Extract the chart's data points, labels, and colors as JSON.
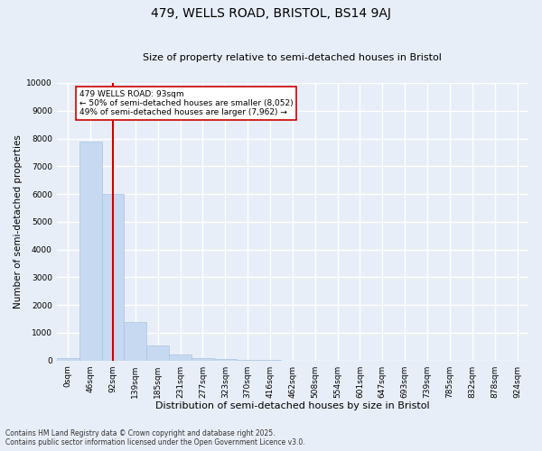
{
  "title_line1": "479, WELLS ROAD, BRISTOL, BS14 9AJ",
  "title_line2": "Size of property relative to semi-detached houses in Bristol",
  "xlabel": "Distribution of semi-detached houses by size in Bristol",
  "ylabel": "Number of semi-detached properties",
  "bin_labels": [
    "0sqm",
    "46sqm",
    "92sqm",
    "139sqm",
    "185sqm",
    "231sqm",
    "277sqm",
    "323sqm",
    "370sqm",
    "416sqm",
    "462sqm",
    "508sqm",
    "554sqm",
    "601sqm",
    "647sqm",
    "693sqm",
    "739sqm",
    "785sqm",
    "832sqm",
    "878sqm",
    "924sqm"
  ],
  "bar_values": [
    100,
    7900,
    6000,
    1400,
    550,
    200,
    100,
    50,
    20,
    5,
    2,
    1,
    0,
    0,
    0,
    0,
    0,
    0,
    0,
    0,
    0
  ],
  "bar_color": "#c6d9f0",
  "bar_edge_color": "#a8c4e0",
  "vline_x": 2,
  "vline_color": "#cc0000",
  "ylim": [
    0,
    10000
  ],
  "yticks": [
    0,
    1000,
    2000,
    3000,
    4000,
    5000,
    6000,
    7000,
    8000,
    9000,
    10000
  ],
  "annotation_text": "479 WELLS ROAD: 93sqm\n← 50% of semi-detached houses are smaller (8,052)\n49% of semi-detached houses are larger (7,962) →",
  "annotation_box_color": "#ffffff",
  "annotation_box_edge": "#cc0000",
  "footnote": "Contains HM Land Registry data © Crown copyright and database right 2025.\nContains public sector information licensed under the Open Government Licence v3.0.",
  "background_color": "#e8eef8",
  "grid_color": "#ffffff",
  "title1_fontsize": 10,
  "title2_fontsize": 8,
  "ylabel_fontsize": 7.5,
  "xlabel_fontsize": 8,
  "tick_fontsize": 6.5,
  "footnote_fontsize": 5.5
}
